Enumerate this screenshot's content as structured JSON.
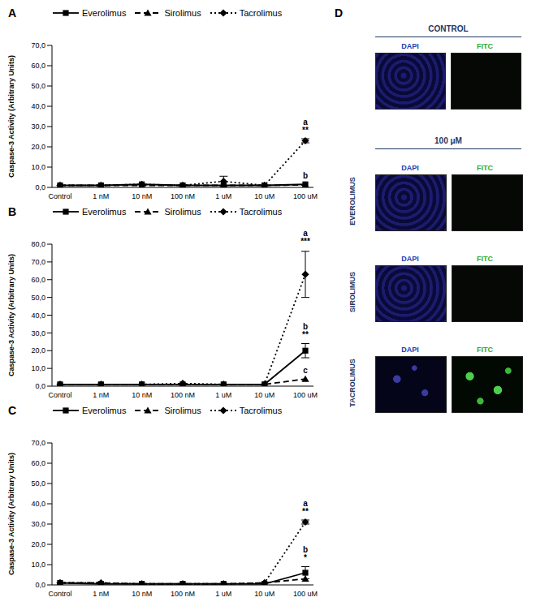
{
  "chart_data": [
    {
      "type": "line",
      "title": "A",
      "y_label": "Caspase-3 Activity (Arbitrary Units)",
      "categories": [
        "Control",
        "1 nM",
        "10 nM",
        "100 nM",
        "1 uM",
        "10 uM",
        "100 uM"
      ],
      "ylim": [
        0,
        70
      ],
      "yticks": [
        {
          "value": 0,
          "label": "0,0"
        },
        {
          "value": 10,
          "label": "10,0"
        },
        {
          "value": 20,
          "label": "20,0"
        },
        {
          "value": 30,
          "label": "30,0"
        },
        {
          "value": 40,
          "label": "40,0"
        },
        {
          "value": 50,
          "label": "50,0"
        },
        {
          "value": 60,
          "label": "60,0"
        },
        {
          "value": 70,
          "label": "70,0"
        }
      ],
      "legend": "top",
      "series": [
        {
          "name": "Everolimus",
          "color": "#000000",
          "marker": "square",
          "line_style": "solid",
          "values": [
            1,
            1,
            1.5,
            1,
            1,
            1,
            1.5
          ],
          "errors": [
            null,
            null,
            null,
            null,
            null,
            null,
            null
          ],
          "annotations": [
            null,
            null,
            null,
            null,
            null,
            null,
            [
              "b"
            ]
          ]
        },
        {
          "name": "Sirolimus",
          "color": "#000000",
          "marker": "triangle",
          "line_style": "dashed",
          "values": [
            1,
            1,
            1,
            1,
            1,
            1,
            1.2
          ],
          "errors": [
            null,
            null,
            null,
            null,
            null,
            null,
            null
          ],
          "annotations": [
            null,
            null,
            null,
            null,
            null,
            null,
            null
          ]
        },
        {
          "name": "Tacrolimus",
          "color": "#000000",
          "marker": "diamond",
          "line_style": "dotted",
          "values": [
            1,
            1,
            1.5,
            1,
            3,
            1,
            23
          ],
          "errors": [
            null,
            null,
            null,
            null,
            2.5,
            null,
            1
          ],
          "annotations": [
            null,
            null,
            null,
            null,
            null,
            null,
            [
              "a",
              "**"
            ]
          ]
        }
      ]
    },
    {
      "type": "line",
      "title": "B",
      "y_label": "Caspase-3 Activity (Arbitrary Units)",
      "categories": [
        "Control",
        "1 nM",
        "10 nM",
        "100 nM",
        "1 uM",
        "10 uM",
        "100 uM"
      ],
      "ylim": [
        0,
        80
      ],
      "yticks": [
        {
          "value": 0,
          "label": "0,0"
        },
        {
          "value": 10,
          "label": "10,0"
        },
        {
          "value": 20,
          "label": "20,0"
        },
        {
          "value": 30,
          "label": "30,0"
        },
        {
          "value": 40,
          "label": "40,0"
        },
        {
          "value": 50,
          "label": "50,0"
        },
        {
          "value": 60,
          "label": "60,0"
        },
        {
          "value": 70,
          "label": "70,0"
        },
        {
          "value": 80,
          "label": "80,0"
        }
      ],
      "legend": "top",
      "series": [
        {
          "name": "Everolimus",
          "color": "#000000",
          "marker": "square",
          "line_style": "solid",
          "values": [
            1,
            1,
            1,
            1,
            1,
            1,
            20
          ],
          "errors": [
            null,
            null,
            null,
            null,
            null,
            null,
            4
          ],
          "annotations": [
            null,
            null,
            null,
            null,
            null,
            null,
            [
              "b",
              "**"
            ]
          ]
        },
        {
          "name": "Sirolimus",
          "color": "#000000",
          "marker": "triangle",
          "line_style": "dashed",
          "values": [
            1,
            1,
            1,
            1,
            1,
            1,
            4
          ],
          "errors": [
            null,
            null,
            null,
            null,
            null,
            null,
            null
          ],
          "annotations": [
            null,
            null,
            null,
            null,
            null,
            null,
            [
              "c"
            ]
          ]
        },
        {
          "name": "Tacrolimus",
          "color": "#000000",
          "marker": "diamond",
          "line_style": "dotted",
          "values": [
            1,
            1,
            1,
            1.5,
            1,
            1,
            63
          ],
          "errors": [
            null,
            null,
            null,
            null,
            null,
            null,
            13
          ],
          "annotations": [
            null,
            null,
            null,
            null,
            null,
            null,
            [
              "a",
              "***"
            ]
          ]
        }
      ]
    },
    {
      "type": "line",
      "title": "C",
      "y_label": "Caspase-3 Activity (Arbitrary Units)",
      "categories": [
        "Control",
        "1 nM",
        "10 nM",
        "100 nM",
        "1 uM",
        "10 uM",
        "100 uM"
      ],
      "ylim": [
        0,
        70
      ],
      "yticks": [
        {
          "value": 0,
          "label": "0,0"
        },
        {
          "value": 10,
          "label": "10,0"
        },
        {
          "value": 20,
          "label": "20,0"
        },
        {
          "value": 30,
          "label": "30,0"
        },
        {
          "value": 40,
          "label": "40,0"
        },
        {
          "value": 50,
          "label": "50,0"
        },
        {
          "value": 60,
          "label": "60,0"
        },
        {
          "value": 70,
          "label": "70,0"
        }
      ],
      "legend": "top",
      "series": [
        {
          "name": "Everolimus",
          "color": "#000000",
          "marker": "square",
          "line_style": "solid",
          "values": [
            1,
            0.5,
            0.5,
            0.5,
            0.5,
            0.5,
            6
          ],
          "errors": [
            null,
            null,
            null,
            null,
            null,
            null,
            3
          ],
          "annotations": [
            null,
            null,
            null,
            null,
            null,
            null,
            [
              "b",
              "*"
            ]
          ]
        },
        {
          "name": "Sirolimus",
          "color": "#000000",
          "marker": "triangle",
          "line_style": "dashed",
          "values": [
            1,
            1,
            0.5,
            0.5,
            0.5,
            1,
            3
          ],
          "errors": [
            null,
            null,
            null,
            null,
            null,
            null,
            null
          ],
          "annotations": [
            null,
            null,
            null,
            null,
            null,
            null,
            null
          ]
        },
        {
          "type": "line",
          "name": "Tacrolimus",
          "color": "#000000",
          "marker": "diamond",
          "line_style": "dotted",
          "values": [
            1,
            1,
            0.5,
            0.5,
            0.5,
            1,
            31
          ],
          "errors": [
            null,
            null,
            null,
            null,
            null,
            null,
            1
          ],
          "annotations": [
            null,
            null,
            null,
            null,
            null,
            null,
            [
              "a",
              "**"
            ]
          ]
        }
      ]
    }
  ],
  "panel_d": {
    "title": "D",
    "control": "CONTROL",
    "dose": "100 μM",
    "channels": [
      "DAPI",
      "FITC"
    ],
    "treatments": [
      "EVEROLIMUS",
      "SIROLIMUS",
      "TACROLIMUS"
    ]
  }
}
